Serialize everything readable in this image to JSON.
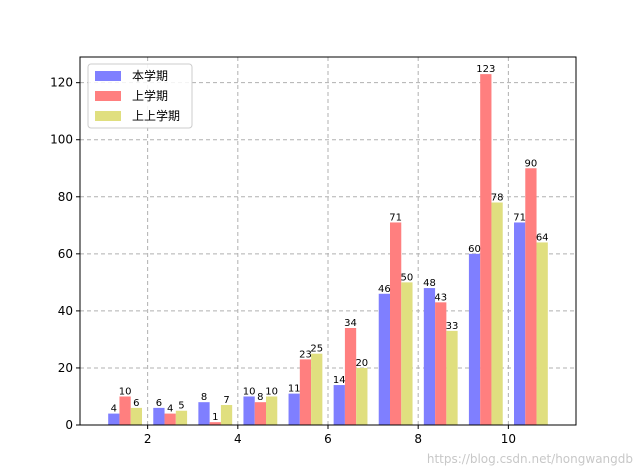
{
  "chart_data": {
    "type": "bar",
    "x": [
      1.5,
      2.5,
      3.5,
      4.5,
      5.5,
      6.5,
      7.5,
      8.5,
      9.5,
      10.5
    ],
    "xticks": [
      2,
      4,
      6,
      8,
      10
    ],
    "yticks": [
      0,
      20,
      40,
      60,
      80,
      100,
      120
    ],
    "ylim": [
      0,
      129
    ],
    "xlim": [
      0.5,
      11.5
    ],
    "grid": true,
    "legend_position": "top-left",
    "series": [
      {
        "name": "本学期",
        "color": "#7f7fff",
        "values": [
          4,
          6,
          8,
          10,
          11,
          14,
          46,
          48,
          60,
          71
        ]
      },
      {
        "name": "上学期",
        "color": "#ff7f7f",
        "values": [
          10,
          4,
          1,
          8,
          23,
          34,
          71,
          43,
          123,
          90
        ]
      },
      {
        "name": "上上学期",
        "color": "#e0df7f",
        "values": [
          6,
          5,
          7,
          10,
          25,
          20,
          50,
          33,
          78,
          64
        ]
      }
    ]
  },
  "watermark": "https://blog.csdn.net/hongwangdb"
}
